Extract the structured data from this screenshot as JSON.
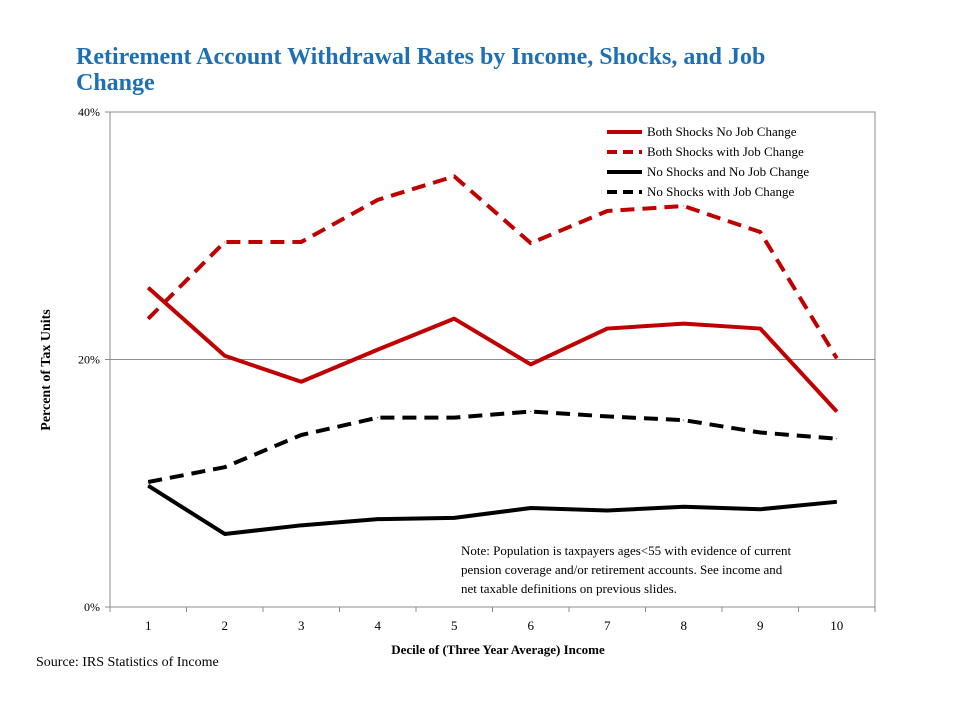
{
  "title": "Retirement Account Withdrawal Rates by Income, Shocks, and Job Change",
  "source": "Source: IRS Statistics of Income",
  "colors": {
    "title": "#1f6fb4",
    "red": "#c00000",
    "black": "#000000"
  },
  "chart_data": {
    "type": "line",
    "xlabel": "Decile of (Three Year Average) Income",
    "ylabel": "Percent of Tax Units",
    "x": [
      1,
      2,
      3,
      4,
      5,
      6,
      7,
      8,
      9,
      10
    ],
    "y_ticks": [
      "0%",
      "20%",
      "40%"
    ],
    "ylim": [
      0,
      40
    ],
    "grid": "horizontal",
    "legend_position": "top-right",
    "annotation": "Note: Population is taxpayers ages<55 with evidence of current pension coverage and/or retirement accounts. See income and net taxable definitions on previous slides.",
    "annotation_lines": [
      "Note: Population is taxpayers ages<55 with evidence of current",
      "pension coverage and/or retirement accounts. See income and",
      "net taxable definitions on previous slides."
    ],
    "series": [
      {
        "name": "Both Shocks No Job Change",
        "color": "#c00000",
        "dash": "solid",
        "values": [
          25.8,
          20.3,
          18.2,
          20.8,
          23.3,
          19.6,
          22.5,
          22.9,
          22.5,
          15.8
        ]
      },
      {
        "name": "Both Shocks with Job Change",
        "color": "#c00000",
        "dash": "dashed",
        "values": [
          23.3,
          29.5,
          29.5,
          32.9,
          34.8,
          29.4,
          32.0,
          32.4,
          30.3,
          20.1
        ]
      },
      {
        "name": "No Shocks and No Job Change",
        "color": "#000000",
        "dash": "solid",
        "values": [
          9.8,
          5.9,
          6.6,
          7.1,
          7.2,
          8.0,
          7.8,
          8.1,
          7.9,
          8.5
        ]
      },
      {
        "name": "No Shocks with Job Change",
        "color": "#000000",
        "dash": "dashed",
        "values": [
          10.1,
          11.3,
          13.9,
          15.3,
          15.3,
          15.8,
          15.4,
          15.1,
          14.1,
          13.6
        ]
      }
    ]
  }
}
